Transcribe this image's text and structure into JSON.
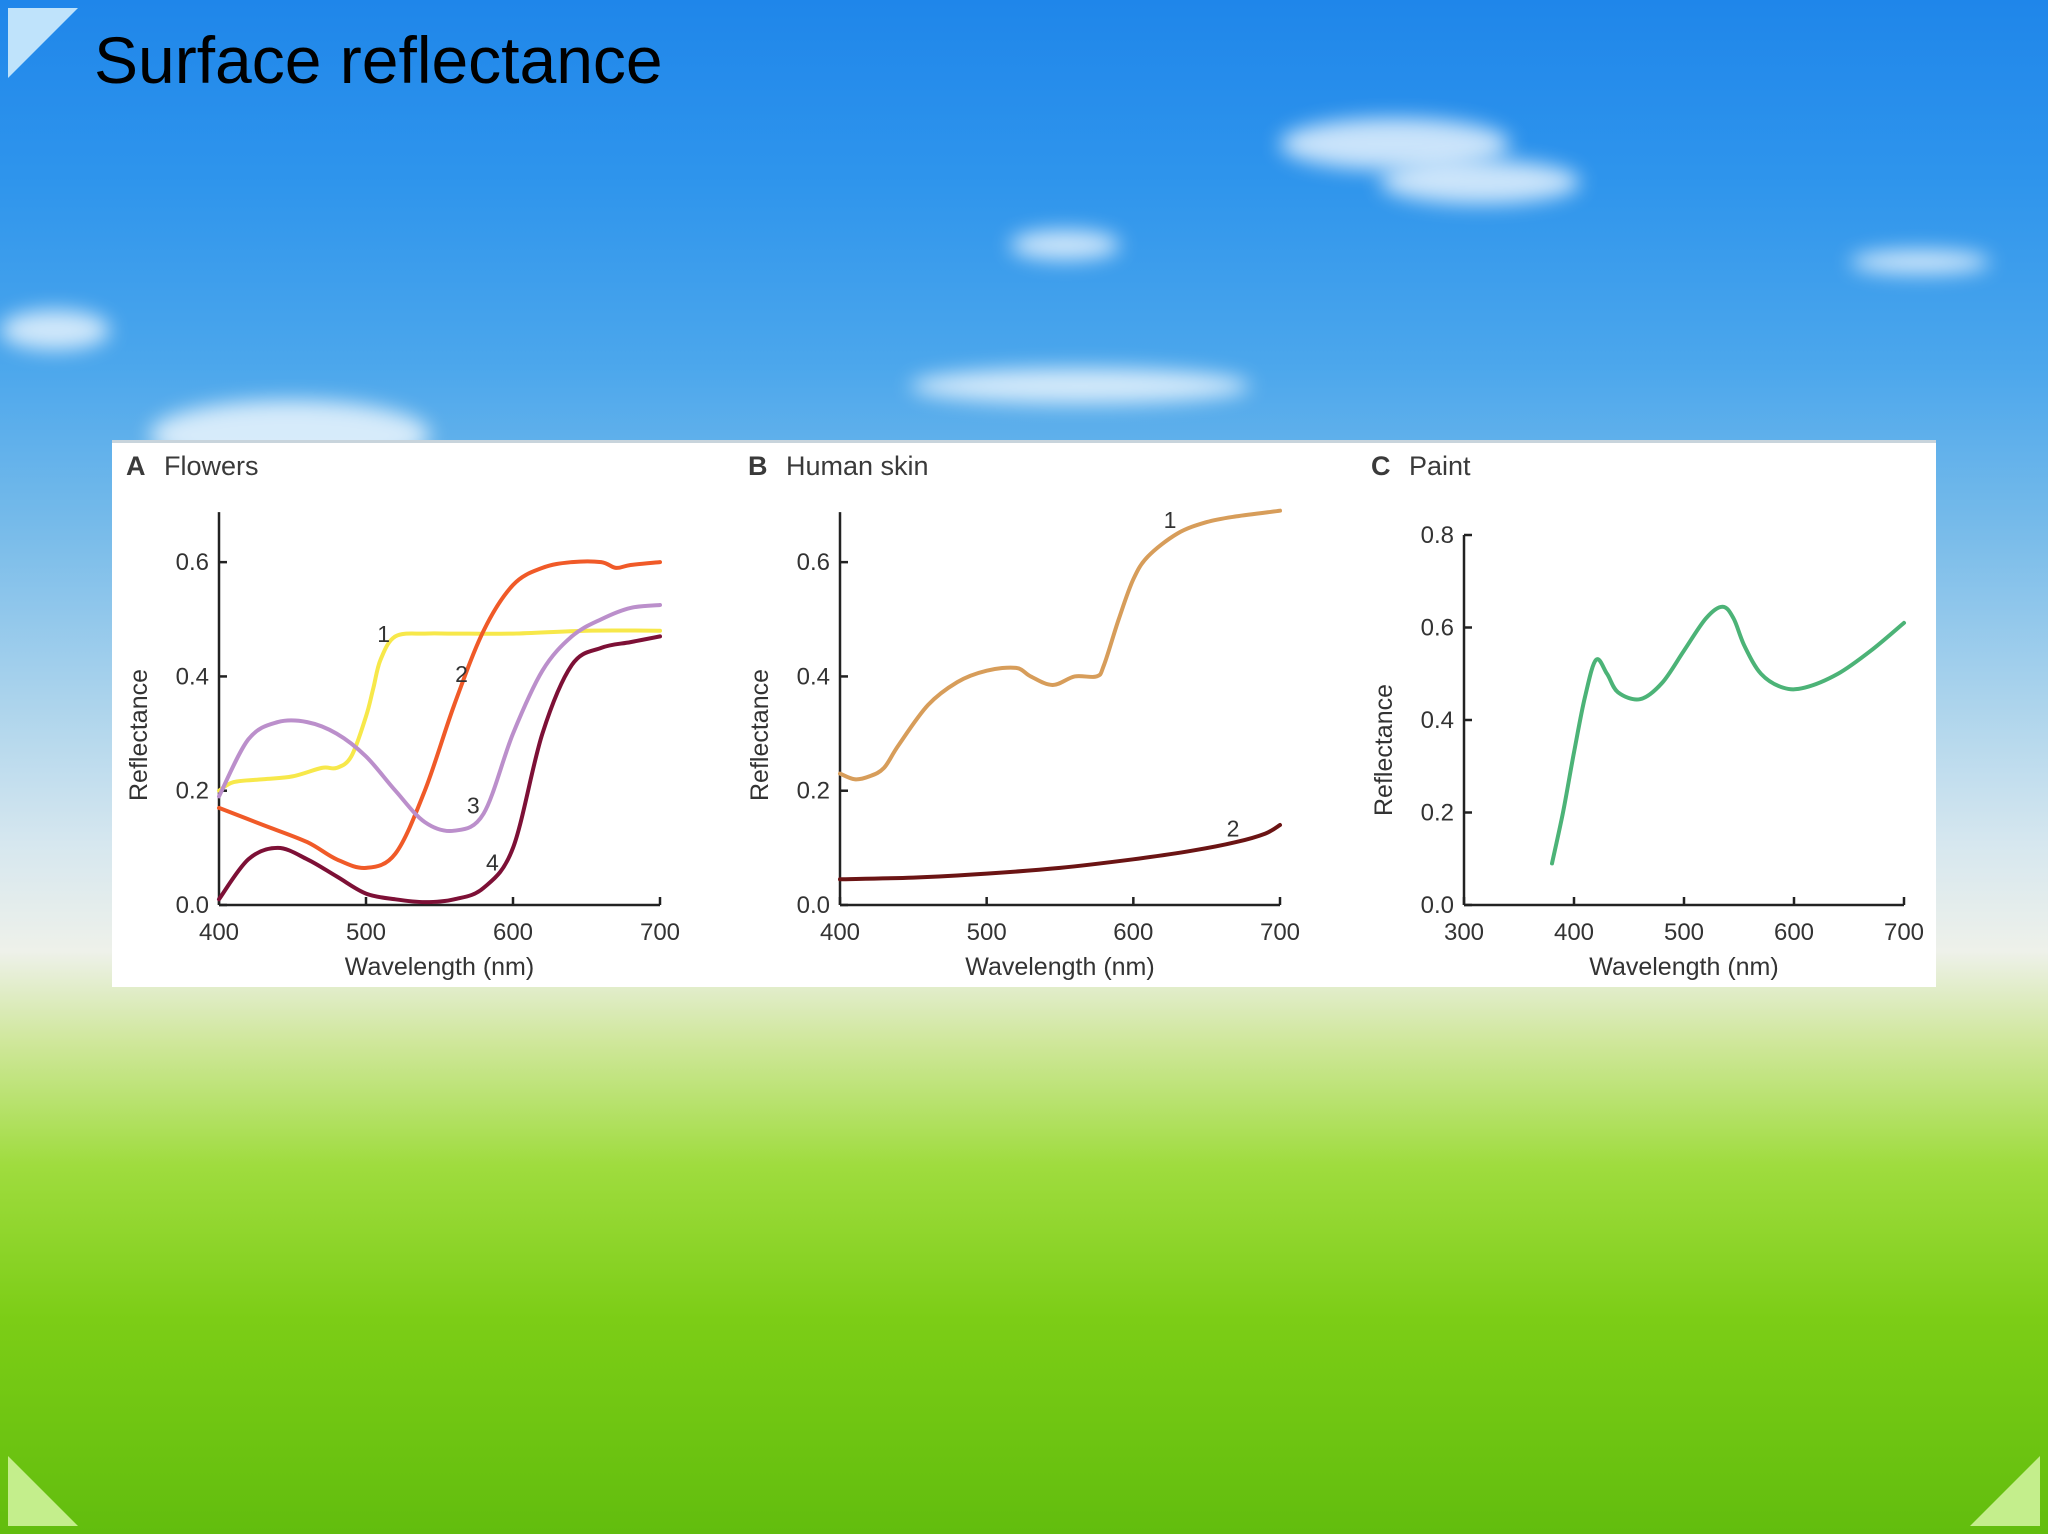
{
  "slide": {
    "title": "Surface reflectance"
  },
  "colors": {
    "yellow": "#f7e84a",
    "orange": "#f05a28",
    "lavender": "#bb8fcb",
    "maroon": "#7d1036",
    "tan": "#d79d5a",
    "dark_brown": "#6b1414",
    "green": "#4cb377"
  },
  "chart_data": [
    {
      "type": "line",
      "letter": "A",
      "title": "Flowers",
      "xlabel": "Wavelength (nm)",
      "ylabel": "Reflectance",
      "xlim": [
        400,
        700
      ],
      "ylim": [
        0,
        0.7
      ],
      "xticks": [
        400,
        500,
        600,
        700
      ],
      "yticks": [
        0.0,
        0.2,
        0.4,
        0.6
      ],
      "ytick_labels": [
        "0.0",
        "0.2",
        "0.4",
        "0.6"
      ],
      "series": [
        {
          "name": "1",
          "color": "#f7e84a",
          "x": [
            400,
            410,
            430,
            450,
            470,
            480,
            490,
            500,
            505,
            510,
            520,
            540,
            560,
            600,
            650,
            700
          ],
          "y": [
            0.2,
            0.215,
            0.22,
            0.225,
            0.24,
            0.24,
            0.26,
            0.33,
            0.38,
            0.43,
            0.47,
            0.475,
            0.475,
            0.475,
            0.48,
            0.48
          ],
          "label_at": [
            512,
            0.46
          ]
        },
        {
          "name": "2",
          "color": "#f05a28",
          "x": [
            400,
            430,
            460,
            480,
            500,
            520,
            540,
            560,
            580,
            600,
            620,
            640,
            660,
            670,
            680,
            700
          ],
          "y": [
            0.17,
            0.14,
            0.11,
            0.08,
            0.065,
            0.09,
            0.2,
            0.35,
            0.48,
            0.56,
            0.59,
            0.6,
            0.6,
            0.59,
            0.595,
            0.6
          ],
          "label_at": [
            565,
            0.39
          ]
        },
        {
          "name": "3",
          "color": "#bb8fcb",
          "x": [
            400,
            420,
            440,
            460,
            480,
            500,
            520,
            540,
            560,
            580,
            600,
            620,
            640,
            660,
            680,
            700
          ],
          "y": [
            0.19,
            0.29,
            0.32,
            0.32,
            0.3,
            0.26,
            0.2,
            0.145,
            0.13,
            0.16,
            0.3,
            0.41,
            0.47,
            0.5,
            0.52,
            0.525
          ],
          "label_at": [
            573,
            0.16
          ]
        },
        {
          "name": "4",
          "color": "#7d1036",
          "x": [
            400,
            420,
            440,
            460,
            480,
            500,
            520,
            540,
            560,
            580,
            600,
            620,
            640,
            660,
            680,
            700
          ],
          "y": [
            0.01,
            0.08,
            0.1,
            0.08,
            0.05,
            0.02,
            0.01,
            0.005,
            0.01,
            0.03,
            0.1,
            0.3,
            0.42,
            0.45,
            0.46,
            0.47
          ],
          "label_at": [
            586,
            0.06
          ]
        }
      ]
    },
    {
      "type": "line",
      "letter": "B",
      "title": "Human skin",
      "xlabel": "Wavelength (nm)",
      "ylabel": "Reflectance",
      "xlim": [
        400,
        700
      ],
      "ylim": [
        0,
        0.7
      ],
      "xticks": [
        400,
        500,
        600,
        700
      ],
      "yticks": [
        0.0,
        0.2,
        0.4,
        0.6
      ],
      "ytick_labels": [
        "0.0",
        "0.2",
        "0.4",
        "0.6"
      ],
      "series": [
        {
          "name": "1",
          "color": "#d79d5a",
          "x": [
            400,
            410,
            420,
            430,
            440,
            460,
            480,
            500,
            520,
            530,
            545,
            560,
            575,
            580,
            590,
            600,
            610,
            630,
            650,
            670,
            700
          ],
          "y": [
            0.23,
            0.22,
            0.225,
            0.24,
            0.28,
            0.35,
            0.39,
            0.41,
            0.415,
            0.4,
            0.385,
            0.4,
            0.4,
            0.42,
            0.5,
            0.57,
            0.61,
            0.65,
            0.67,
            0.68,
            0.69
          ],
          "label_at": [
            625,
            0.66
          ]
        },
        {
          "name": "2",
          "color": "#6b1414",
          "x": [
            400,
            450,
            500,
            550,
            600,
            640,
            670,
            690,
            700
          ],
          "y": [
            0.045,
            0.048,
            0.055,
            0.065,
            0.08,
            0.095,
            0.11,
            0.125,
            0.14
          ],
          "label_at": [
            668,
            0.12
          ]
        }
      ]
    },
    {
      "type": "line",
      "letter": "C",
      "title": "Paint",
      "xlabel": "Wavelength (nm)",
      "ylabel": "Reflectance",
      "xlim": [
        300,
        700
      ],
      "ylim": [
        0,
        0.8
      ],
      "xticks": [
        300,
        400,
        500,
        600,
        700
      ],
      "yticks": [
        0.0,
        0.2,
        0.4,
        0.6,
        0.8
      ],
      "ytick_labels": [
        "0.0",
        "0.2",
        "0.4",
        "0.6",
        "0.8"
      ],
      "series": [
        {
          "name": "",
          "color": "#4cb377",
          "x": [
            380,
            390,
            400,
            410,
            420,
            430,
            440,
            460,
            480,
            500,
            520,
            535,
            545,
            555,
            570,
            590,
            610,
            640,
            670,
            700
          ],
          "y": [
            0.09,
            0.2,
            0.33,
            0.45,
            0.53,
            0.5,
            0.46,
            0.445,
            0.48,
            0.55,
            0.62,
            0.645,
            0.62,
            0.56,
            0.5,
            0.47,
            0.47,
            0.5,
            0.55,
            0.61
          ]
        }
      ]
    }
  ]
}
